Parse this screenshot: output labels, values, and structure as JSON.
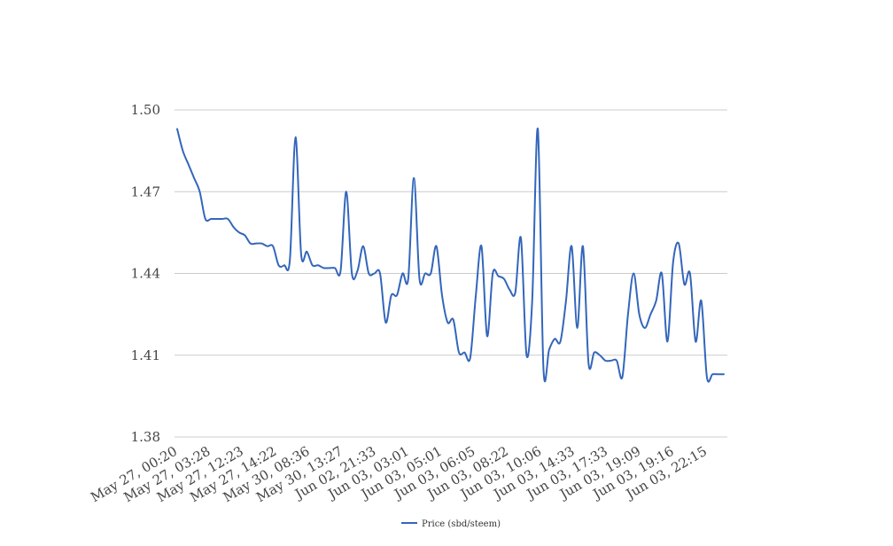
{
  "chart_data": {
    "type": "line",
    "title": "",
    "xlabel": "",
    "ylabel": "",
    "ylim": [
      1.38,
      1.5
    ],
    "yticks": [
      1.38,
      1.41,
      1.44,
      1.47,
      1.5
    ],
    "ytick_labels": [
      "1.38",
      "1.41",
      "1.44",
      "1.47",
      "1.50"
    ],
    "xtick_labels": [
      "May 27, 00:20",
      "May 27, 03:28",
      "May 27, 12:23",
      "May 27, 14:22",
      "May 30, 08:36",
      "May 30, 13:27",
      "Jun 02, 21:33",
      "Jun 03, 03:01",
      "Jun 03, 05:01",
      "Jun 03, 06:05",
      "Jun 03, 08:22",
      "Jun 03, 10:06",
      "Jun 03, 14:33",
      "Jun 03, 17:33",
      "Jun 03, 19:09",
      "Jun 03, 19:16",
      "Jun 03, 22:15"
    ],
    "grid": true,
    "legend_position": "bottom",
    "series": [
      {
        "name": "Price (sbd/steem)",
        "color": "#3366bb",
        "values": [
          1.493,
          1.485,
          1.48,
          1.475,
          1.47,
          1.46,
          1.46,
          1.46,
          1.46,
          1.46,
          1.457,
          1.455,
          1.454,
          1.451,
          1.451,
          1.451,
          1.45,
          1.45,
          1.443,
          1.443,
          1.445,
          1.49,
          1.447,
          1.448,
          1.443,
          1.443,
          1.442,
          1.442,
          1.442,
          1.441,
          1.47,
          1.44,
          1.441,
          1.45,
          1.44,
          1.44,
          1.44,
          1.422,
          1.432,
          1.432,
          1.44,
          1.438,
          1.475,
          1.438,
          1.44,
          1.44,
          1.45,
          1.432,
          1.422,
          1.423,
          1.411,
          1.411,
          1.409,
          1.432,
          1.45,
          1.417,
          1.44,
          1.439,
          1.438,
          1.434,
          1.433,
          1.453,
          1.41,
          1.43,
          1.493,
          1.405,
          1.412,
          1.416,
          1.415,
          1.43,
          1.45,
          1.42,
          1.45,
          1.407,
          1.411,
          1.41,
          1.408,
          1.408,
          1.408,
          1.402,
          1.425,
          1.44,
          1.425,
          1.42,
          1.425,
          1.43,
          1.44,
          1.415,
          1.444,
          1.451,
          1.436,
          1.44,
          1.415,
          1.43,
          1.402,
          1.403,
          1.403,
          1.403
        ]
      }
    ]
  }
}
